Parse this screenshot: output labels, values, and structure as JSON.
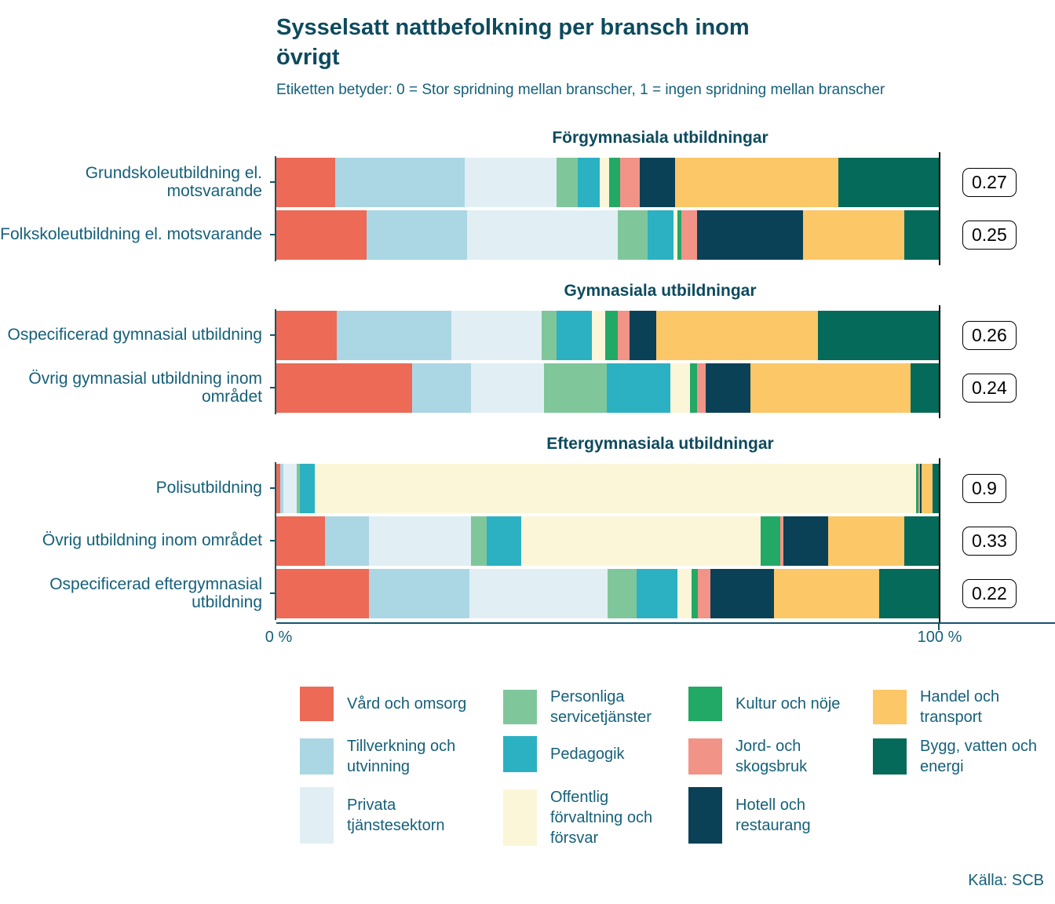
{
  "title": "Sysselsatt nattbefolkning per bransch inom övrigt",
  "subtitle": "Etiketten betyder: 0 = Stor spridning mellan branscher, 1 = ingen spridning mellan branscher",
  "axis": {
    "left": "0 %",
    "right": "100 %"
  },
  "source": "Källa: SCB",
  "chart_data": {
    "type": "bar",
    "orientation": "horizontal",
    "stacked": true,
    "unit": "%",
    "xlim": [
      0,
      100
    ],
    "x_ticks": [
      "0 %",
      "100 %"
    ],
    "legend_position": "bottom",
    "industries": [
      {
        "name": "Vård och omsorg",
        "color": "#ec6a56"
      },
      {
        "name": "Tillverkning och utvinning",
        "color": "#abd6e3"
      },
      {
        "name": "Privata tjänstesektorn",
        "color": "#e1eff4"
      },
      {
        "name": "Personliga servicetjänster",
        "color": "#7fc79b"
      },
      {
        "name": "Pedagogik",
        "color": "#2bb1c2"
      },
      {
        "name": "Offentlig förvaltning och försvar",
        "color": "#fcf6d9"
      },
      {
        "name": "Kultur och nöje",
        "color": "#22a966"
      },
      {
        "name": "Jord- och skogsbruk",
        "color": "#f29387"
      },
      {
        "name": "Hotell och restaurang",
        "color": "#0b4156"
      },
      {
        "name": "Handel och transport",
        "color": "#fbc767"
      },
      {
        "name": "Bygg, vatten och energi",
        "color": "#056a59"
      }
    ],
    "groups": [
      {
        "title": "Förgymnasiala utbildningar",
        "rows": [
          {
            "label": "Grundskoleutbildning el. motsvarande",
            "score": "0.27",
            "values": [
              8.9,
              19.5,
              13.9,
              3.2,
              3.3,
              1.4,
              1.7,
              3.0,
              5.3,
              24.6,
              15.2
            ]
          },
          {
            "label": "Folkskoleutbildning el. motsvarande",
            "score": "0.25",
            "values": [
              13.6,
              15.2,
              22.8,
              4.5,
              3.9,
              0.5,
              0.7,
              2.3,
              16.0,
              15.3,
              5.2
            ]
          }
        ]
      },
      {
        "title": "Gymnasiala utbildningar",
        "rows": [
          {
            "label": "Ospecificerad gymnasial utbildning",
            "score": "0.26",
            "values": [
              9.1,
              17.3,
              13.6,
              2.3,
              5.3,
              2.0,
              2.0,
              1.7,
              4.0,
              24.5,
              18.2
            ]
          },
          {
            "label": "Övrig gymnasial utbildning inom området",
            "score": "0.24",
            "values": [
              20.5,
              8.9,
              11.0,
              9.5,
              9.6,
              2.9,
              1.1,
              1.3,
              6.8,
              24.2,
              4.2
            ]
          }
        ]
      },
      {
        "title": "Eftergymnasiala utbildningar",
        "rows": [
          {
            "label": "Polisutbildning",
            "score": "0.9",
            "values": [
              0.6,
              0.5,
              2.0,
              0.5,
              2.2,
              90.8,
              0.3,
              0.2,
              0.3,
              1.7,
              0.9
            ]
          },
          {
            "label": "Övrig utbildning inom området",
            "score": "0.33",
            "values": [
              7.4,
              6.6,
              15.4,
              2.4,
              5.2,
              36.1,
              3.0,
              0.5,
              6.7,
              11.5,
              5.2
            ]
          },
          {
            "label": "Ospecificerad eftergymnasial utbildning",
            "score": "0.22",
            "values": [
              14.0,
              15.2,
              20.8,
              4.4,
              6.2,
              2.1,
              0.9,
              1.9,
              9.6,
              15.9,
              9.0
            ]
          }
        ]
      }
    ]
  }
}
